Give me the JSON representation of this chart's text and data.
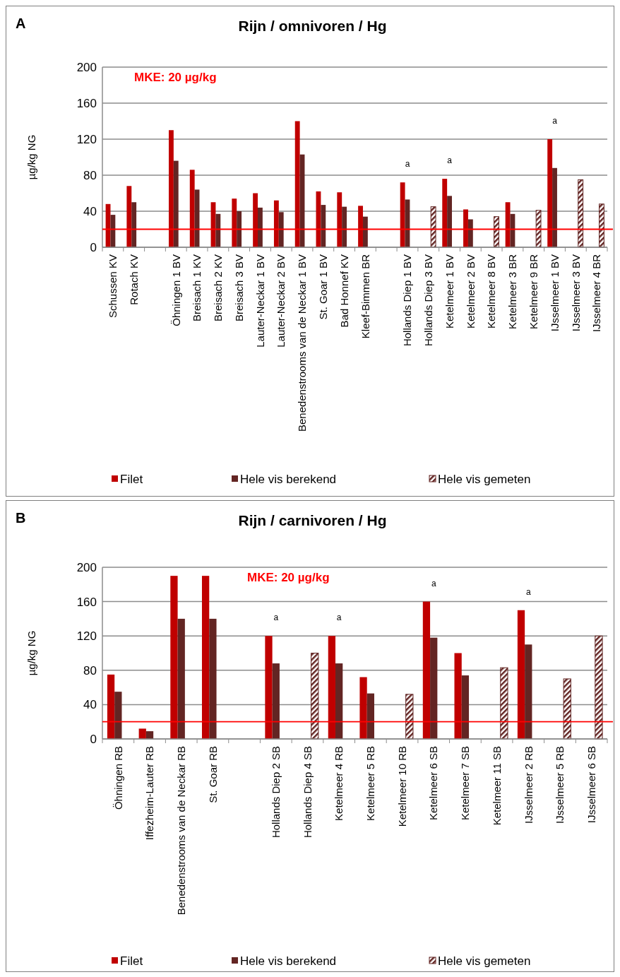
{
  "chart_data": [
    {
      "type": "bar",
      "title": "Rijn / omnivoren / Hg",
      "ylabel": "µg/kg NG",
      "categories": [
        "Schussen KV",
        "Rotach KV",
        null,
        "Öhningen 1 BV",
        "Breisach 1 KV",
        "Breisach 2 KV",
        "Breisach 3 BV",
        "Lauter-Neckar 1 BV",
        "Lauter-Neckar 2 BV",
        "Benedenstrooms van de Neckar 1 BV",
        "St. Goar 1 BV",
        "Bad Honnef KV",
        "Kleef-Bimmen BR",
        null,
        "Hollands Diep 1 BV",
        "Hollands Diep 3 BV",
        "Ketelmeer 1 BV",
        "Ketelmeer 2 BV",
        "Ketelmeer 8 BV",
        "Ketelmeer 3 BR",
        "Ketelmeer 9 BR",
        "IJsselmeer 1 BV",
        "IJsselmeer 3 BV",
        "IJsselmeer 4 BR"
      ],
      "series": [
        {
          "name": "Filet",
          "color": "#c00000",
          "values": [
            48,
            68,
            null,
            130,
            86,
            50,
            54,
            60,
            52,
            140,
            62,
            61,
            46,
            null,
            72,
            null,
            76,
            42,
            null,
            50,
            null,
            120,
            null,
            null
          ]
        },
        {
          "name": "Hele vis berekend",
          "color": "#632523",
          "values": [
            36,
            50,
            null,
            96,
            64,
            37,
            40,
            44,
            39,
            103,
            47,
            45,
            34,
            null,
            53,
            null,
            57,
            31,
            null,
            37,
            null,
            88,
            null,
            null
          ]
        },
        {
          "name": "Hele vis gemeten",
          "color": "#632523",
          "values": [
            null,
            null,
            null,
            null,
            null,
            null,
            null,
            null,
            null,
            null,
            null,
            null,
            null,
            null,
            null,
            45,
            null,
            null,
            34,
            null,
            41,
            null,
            75,
            48
          ]
        }
      ],
      "ylim": [
        0,
        200
      ],
      "yticks": [
        0,
        40,
        80,
        120,
        160,
        200
      ],
      "grid": "y",
      "legend": "bottom",
      "ref_lines": [
        {
          "axis": "y",
          "value": 20,
          "label": "MKE: 20 µg/kg",
          "color": "#ff0000"
        }
      ],
      "annotations": [
        "A",
        {
          "text": "a",
          "x": "Hollands Diep 1 BV",
          "y": 72
        },
        {
          "text": "a",
          "x": "Ketelmeer 1 BV",
          "y": 76
        },
        {
          "text": "a",
          "x": "IJsselmeer 1 BV",
          "y": 120
        }
      ]
    },
    {
      "type": "bar",
      "title": "Rijn / carnivoren / Hg",
      "ylabel": "µg/kg NG",
      "categories": [
        "Öhningen RB",
        "Iffezheim-Lauter RB",
        "Benedenstrooms van de Neckar RB",
        "St. Goar RB",
        null,
        "Hollands Diep 2 SB",
        "Hollands Diep 4 SB",
        "Ketelmeer 4 RB",
        "Ketelmeer 5 RB",
        "Ketelmeer 10 RB",
        "Ketelmeer 6 SB",
        "Ketelmeer 7 SB",
        "Ketelmeer 11 SB",
        "IJsselmeer 2 RB",
        "IJsselmeer 5 RB",
        "IJsselmeer 6 SB"
      ],
      "series": [
        {
          "name": "Filet",
          "color": "#c00000",
          "values": [
            75,
            12,
            190,
            190,
            null,
            120,
            null,
            120,
            72,
            null,
            160,
            100,
            null,
            150,
            null,
            null
          ]
        },
        {
          "name": "Hele vis berekend",
          "color": "#632523",
          "values": [
            55,
            9,
            140,
            140,
            null,
            88,
            null,
            88,
            53,
            null,
            118,
            74,
            null,
            110,
            null,
            null
          ]
        },
        {
          "name": "Hele vis gemeten",
          "color": "#632523",
          "values": [
            null,
            null,
            null,
            null,
            null,
            null,
            100,
            null,
            null,
            52,
            null,
            null,
            83,
            null,
            70,
            120
          ]
        }
      ],
      "ylim": [
        0,
        200
      ],
      "yticks": [
        0,
        40,
        80,
        120,
        160,
        200
      ],
      "grid": "y",
      "legend": "bottom",
      "ref_lines": [
        {
          "axis": "y",
          "value": 20,
          "label": "MKE: 20 µg/kg",
          "color": "#ff0000"
        }
      ],
      "annotations": [
        "B",
        {
          "text": "a",
          "x": "Hollands Diep 2 SB",
          "y": 120
        },
        {
          "text": "a",
          "x": "Ketelmeer 4 RB",
          "y": 120
        },
        {
          "text": "a",
          "x": "Ketelmeer 6 SB",
          "y": 160
        },
        {
          "text": "a",
          "x": "IJsselmeer 2 RB",
          "y": 150
        }
      ]
    }
  ]
}
